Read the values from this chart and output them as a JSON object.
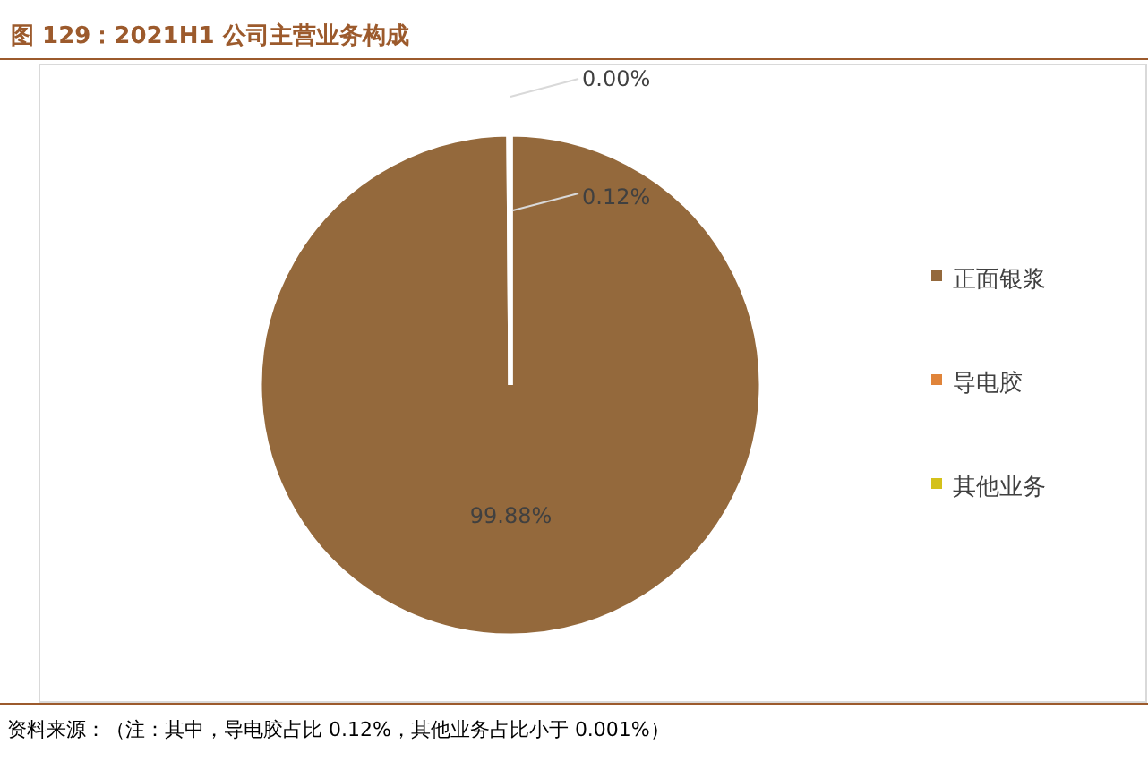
{
  "chart_data": {
    "type": "pie",
    "title": "图 129：2021H1 公司主营业务构成",
    "categories": [
      "正面银浆",
      "导电胶",
      "其他业务"
    ],
    "values": [
      99.88,
      0.12,
      0.0
    ],
    "value_labels": [
      "99.88%",
      "0.12%",
      "0.00%"
    ],
    "colors": [
      "#94693c",
      "#e0843a",
      "#d4c11a"
    ],
    "legend": "right",
    "annotations": [
      "资料来源：（注：其中，导电胶占比 0.12%，其他业务占比小于 0.001%）"
    ]
  }
}
